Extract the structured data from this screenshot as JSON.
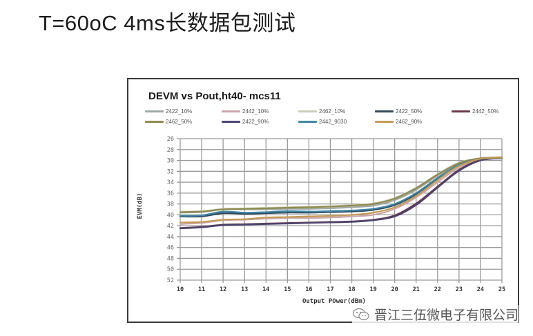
{
  "page": {
    "title": "T=60oC 4ms长数据包测试"
  },
  "watermark": {
    "icon": "wechat-icon",
    "text": "晋江三伍微电子有限公司"
  },
  "chart_data": {
    "type": "line",
    "title": "DEVM vs Pout,ht40- mcs11",
    "xlabel": "Output POwer(dBm)",
    "ylabel": "EVM(dB)",
    "x": [
      10,
      11,
      12,
      13,
      14,
      15,
      16,
      17,
      18,
      19,
      20,
      21,
      22,
      23,
      24,
      25
    ],
    "xlim": [
      10,
      25
    ],
    "ylim": [
      -52,
      -26
    ],
    "yticks": [
      -26,
      -28,
      -30,
      -32,
      -34,
      -36,
      -38,
      -40,
      -42,
      -44,
      -46,
      -48,
      -50,
      -52
    ],
    "ytick_labels": [
      "26",
      "28",
      "30",
      "32",
      "34",
      "36",
      "38",
      "40",
      "42",
      "44",
      "46",
      "48",
      "50",
      "52"
    ],
    "xtick_labels": [
      "10",
      "11",
      "12",
      "13",
      "14",
      "15",
      "16",
      "17",
      "18",
      "19",
      "20",
      "21",
      "22",
      "23",
      "24",
      "25"
    ],
    "grid": true,
    "legend_position": "top",
    "series": [
      {
        "name": "2422_10%",
        "color": "#9fa8a4",
        "values": [
          -39.6,
          -39.5,
          -39.0,
          -39.0,
          -39.0,
          -38.9,
          -38.9,
          -38.8,
          -38.6,
          -38.3,
          -37.3,
          -35.4,
          -32.8,
          -30.6,
          -29.6,
          -29.5
        ]
      },
      {
        "name": "2442_10%",
        "color": "#c9a7ad",
        "values": [
          -41.7,
          -41.5,
          -41.0,
          -40.9,
          -40.7,
          -40.6,
          -40.6,
          -40.5,
          -40.3,
          -40.0,
          -38.9,
          -36.8,
          -34.0,
          -31.3,
          -29.8,
          -29.5
        ]
      },
      {
        "name": "2462_10%",
        "color": "#c8cdb6",
        "values": [
          -39.4,
          -39.3,
          -38.9,
          -38.8,
          -38.7,
          -38.6,
          -38.5,
          -38.4,
          -38.2,
          -37.9,
          -36.9,
          -35.0,
          -32.5,
          -30.4,
          -29.6,
          -29.4
        ]
      },
      {
        "name": "2422_50%",
        "color": "#2f4a5e",
        "values": [
          -40.3,
          -40.3,
          -39.7,
          -39.8,
          -39.7,
          -39.6,
          -39.6,
          -39.5,
          -39.4,
          -39.1,
          -38.2,
          -36.2,
          -33.4,
          -30.9,
          -29.7,
          -29.5
        ]
      },
      {
        "name": "2442_50%",
        "color": "#6b3a4e",
        "values": [
          -42.4,
          -42.2,
          -41.8,
          -41.7,
          -41.6,
          -41.5,
          -41.4,
          -41.3,
          -41.2,
          -40.9,
          -40.1,
          -37.9,
          -34.8,
          -31.7,
          -29.9,
          -29.5
        ]
      },
      {
        "name": "2462_50%",
        "color": "#8f8a4c",
        "values": [
          -39.5,
          -39.4,
          -39.0,
          -38.9,
          -38.8,
          -38.7,
          -38.6,
          -38.5,
          -38.3,
          -38.0,
          -37.0,
          -35.1,
          -32.6,
          -30.5,
          -29.6,
          -29.4
        ]
      },
      {
        "name": "2422_90%",
        "color": "#4a4470",
        "values": [
          -42.5,
          -42.3,
          -41.9,
          -41.8,
          -41.7,
          -41.6,
          -41.5,
          -41.4,
          -41.3,
          -41.0,
          -40.3,
          -38.2,
          -35.0,
          -31.9,
          -30.0,
          -29.6
        ]
      },
      {
        "name": "2442_9030",
        "color": "#3d86a5",
        "values": [
          -40.2,
          -40.1,
          -39.4,
          -39.6,
          -39.5,
          -39.3,
          -39.4,
          -39.3,
          -39.2,
          -38.9,
          -38.0,
          -36.0,
          -33.2,
          -30.8,
          -29.7,
          -29.5
        ]
      },
      {
        "name": "2462_90%",
        "color": "#c49a52",
        "values": [
          -41.4,
          -41.3,
          -40.9,
          -40.8,
          -40.5,
          -40.4,
          -40.3,
          -40.2,
          -40.0,
          -39.6,
          -38.6,
          -36.5,
          -33.6,
          -31.0,
          -29.7,
          -29.5
        ]
      }
    ]
  }
}
